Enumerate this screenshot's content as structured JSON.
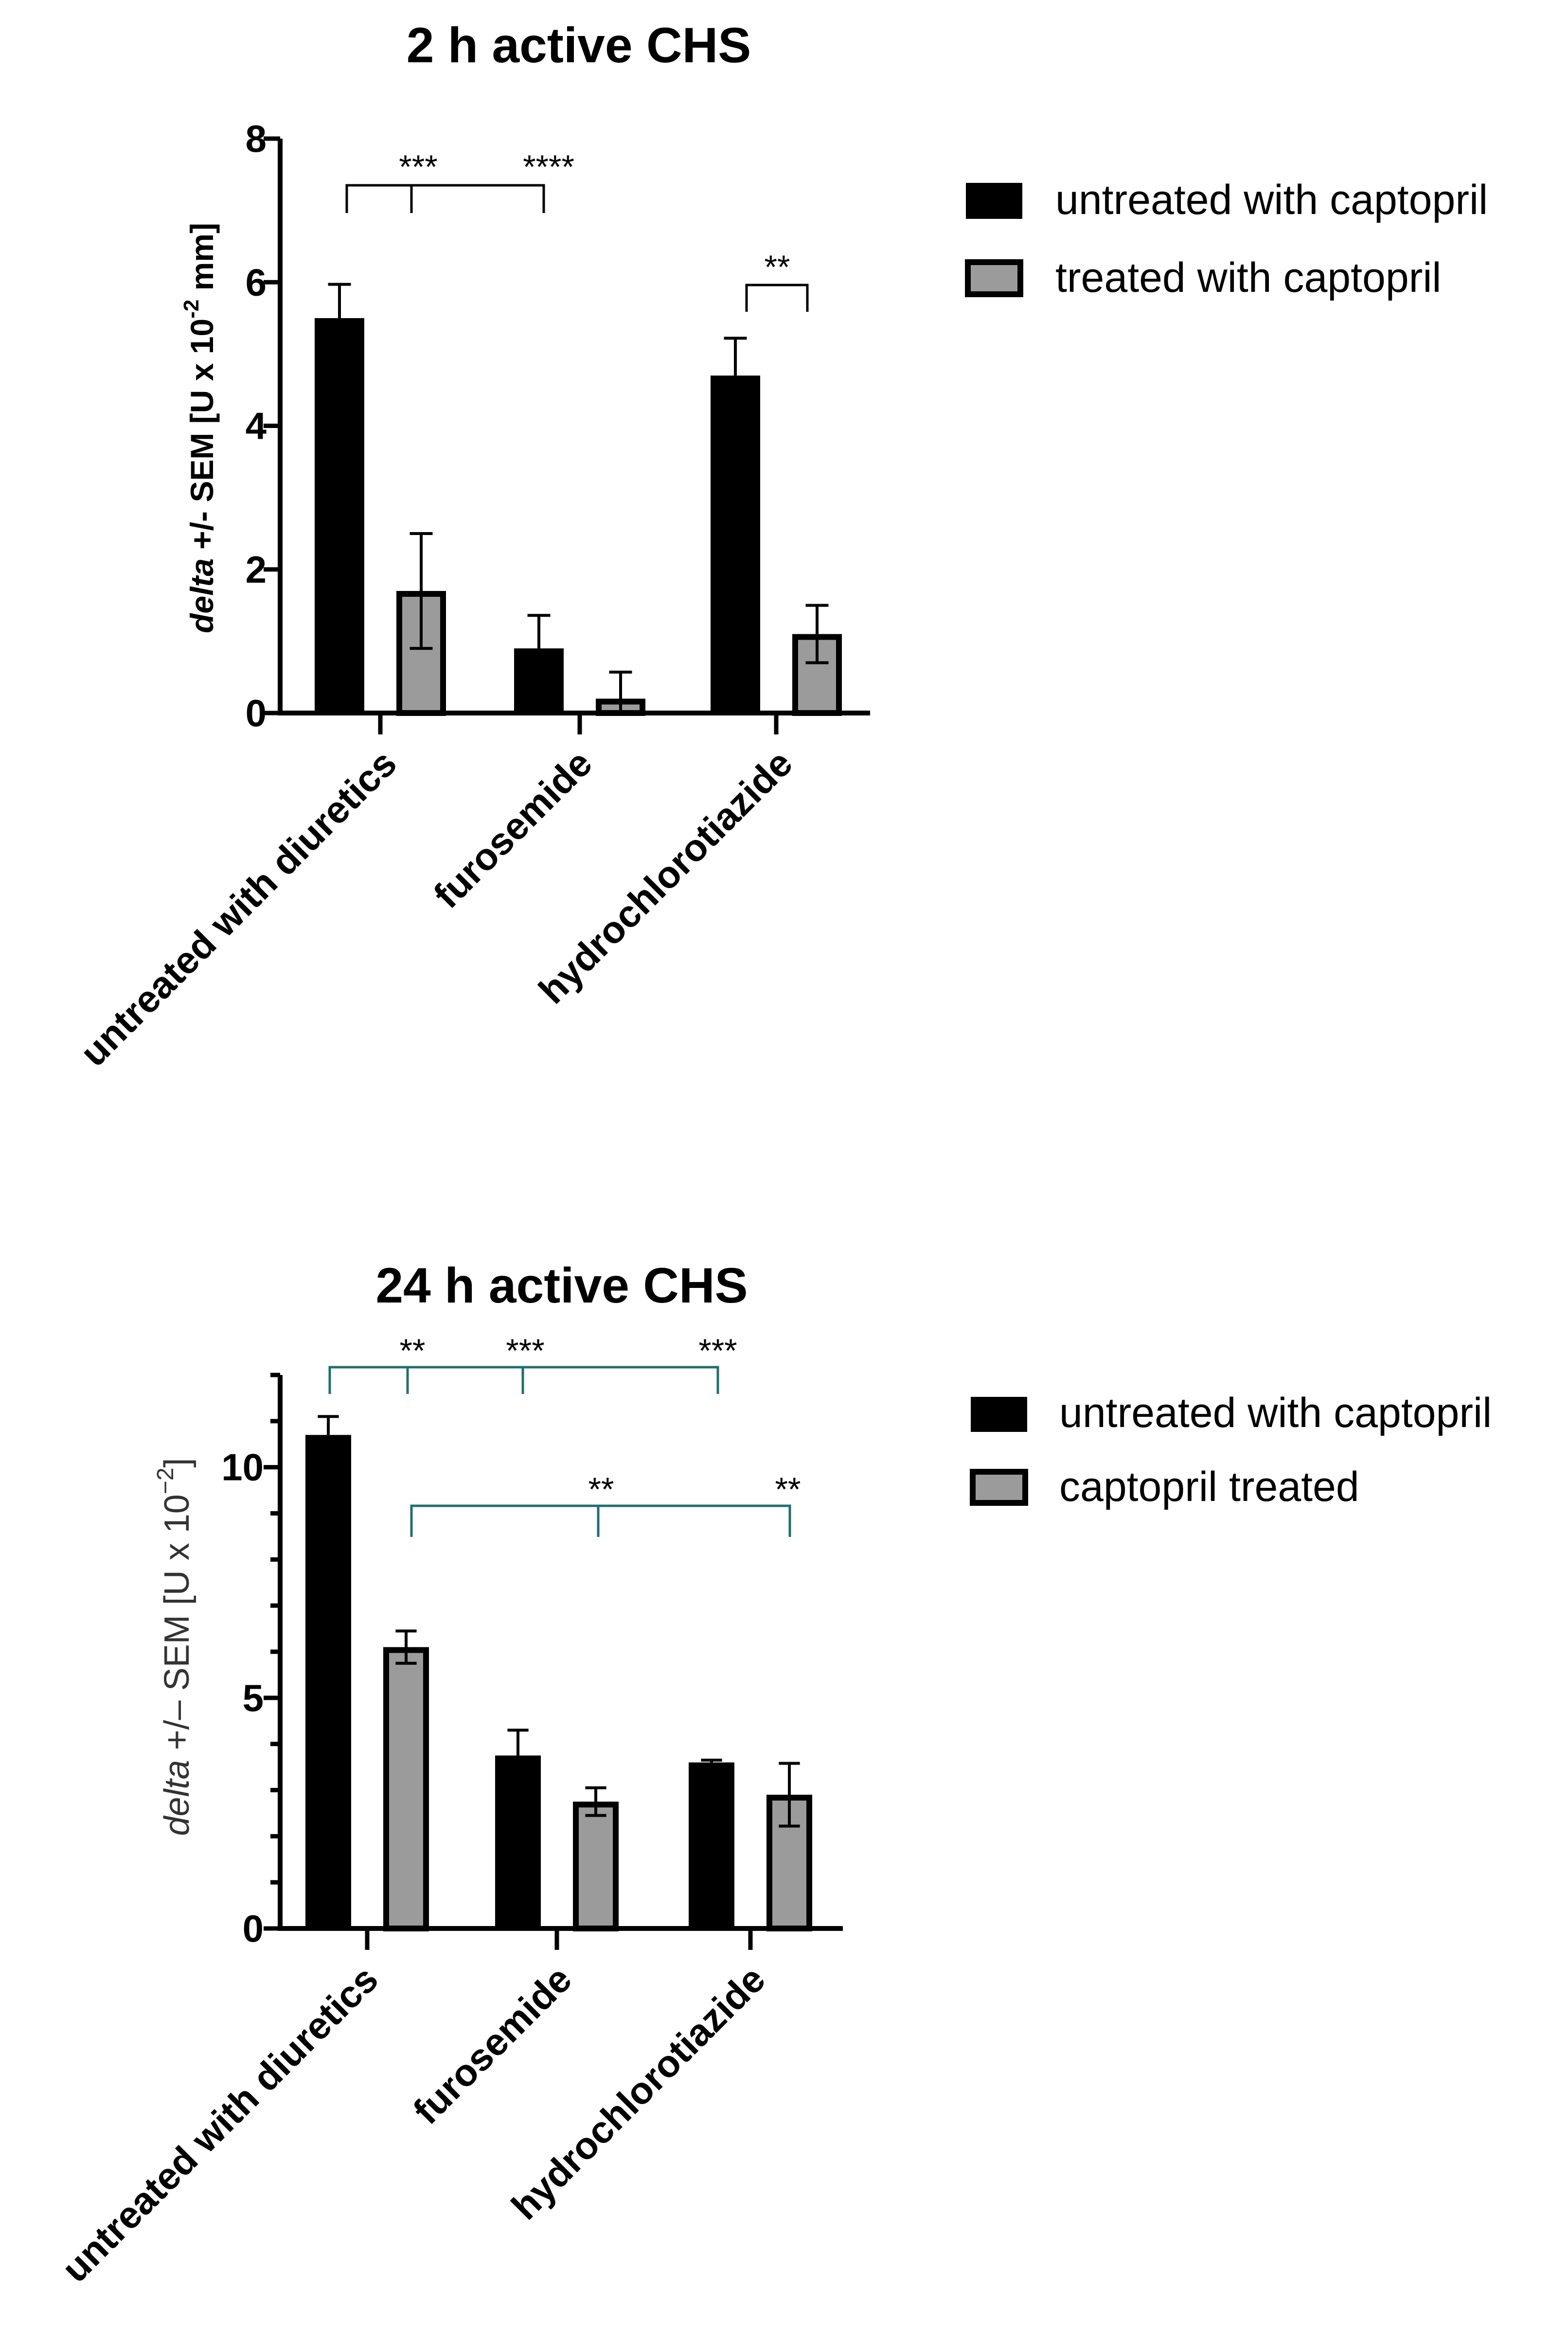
{
  "chart_data": [
    {
      "type": "bar",
      "title": "2 h active CHS",
      "ylabel_italic": "delta",
      "ylabel": "+/- SEM [U x 10",
      "ylabel_exp": "-2",
      "ylabel_suffix": " mm]",
      "ylim": [
        0,
        8
      ],
      "yticks": [
        "0",
        "2",
        "4",
        "6",
        "8"
      ],
      "categories": [
        "untreated with diuretics",
        "furosemide",
        "hydrochlorotiazide"
      ],
      "series": [
        {
          "name": "untreated with captopril",
          "values": [
            5.5,
            0.9,
            4.7
          ],
          "errors": [
            0.47,
            0.46,
            0.52
          ],
          "color": "#000000"
        },
        {
          "name": "treated with captopril",
          "values": [
            1.7,
            0.2,
            1.1
          ],
          "errors": [
            0.8,
            0.37,
            0.4
          ],
          "color": "#9b9b9b"
        }
      ],
      "significance": [
        {
          "label": "***"
        },
        {
          "label": "****"
        },
        {
          "label": "**"
        }
      ],
      "legend_position": "right"
    },
    {
      "type": "bar",
      "title": "24 h active CHS",
      "ylabel_italic": "delta",
      "ylabel": " +/– SEM [U x 10",
      "ylabel_exp": "−2",
      "ylabel_suffix": "]",
      "ylim": [
        0,
        12
      ],
      "yticks": [
        "0",
        "5",
        "10"
      ],
      "categories": [
        "untreated with diuretics",
        "furosemide",
        "hydrochlorotiazide"
      ],
      "series": [
        {
          "name": "untreated with captopril",
          "values": [
            10.7,
            3.75,
            3.6
          ],
          "errors": [
            0.4,
            0.55,
            0.05
          ],
          "color": "#000000"
        },
        {
          "name": "captopril treated",
          "values": [
            6.1,
            2.75,
            2.9
          ],
          "errors": [
            0.35,
            0.3,
            0.68
          ],
          "color": "#9b9b9b"
        }
      ],
      "significance": [
        {
          "label": "**"
        },
        {
          "label": "***"
        },
        {
          "label": "***"
        },
        {
          "label": "**"
        },
        {
          "label": "**"
        }
      ],
      "legend_position": "right"
    }
  ]
}
